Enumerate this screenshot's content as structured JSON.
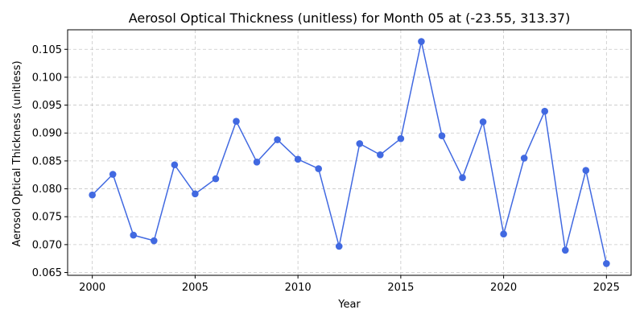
{
  "chart_data": {
    "type": "line",
    "title": "Aerosol Optical Thickness (unitless) for Month 05 at (-23.55, 313.37)",
    "xlabel": "Year",
    "ylabel": "Aerosol Optical Thickness (unitless)",
    "xlim": [
      1998.8,
      2026.2
    ],
    "ylim": [
      0.0645,
      0.1085
    ],
    "x_ticks": [
      2000,
      2005,
      2010,
      2015,
      2020,
      2025
    ],
    "x_tick_labels": [
      "2000",
      "2005",
      "2010",
      "2015",
      "2020",
      "2025"
    ],
    "y_ticks": [
      0.065,
      0.07,
      0.075,
      0.08,
      0.085,
      0.09,
      0.095,
      0.1,
      0.105
    ],
    "y_tick_labels": [
      "0.065",
      "0.070",
      "0.075",
      "0.080",
      "0.085",
      "0.090",
      "0.095",
      "0.100",
      "0.105"
    ],
    "grid": true,
    "series": [
      {
        "color": "#4169e1",
        "marker": "circle",
        "x": [
          2000,
          2001,
          2002,
          2003,
          2004,
          2005,
          2006,
          2007,
          2008,
          2009,
          2010,
          2011,
          2012,
          2013,
          2014,
          2015,
          2016,
          2017,
          2018,
          2019,
          2020,
          2021,
          2022,
          2023,
          2024,
          2025
        ],
        "values": [
          0.0789,
          0.0826,
          0.0717,
          0.0707,
          0.0843,
          0.0791,
          0.0818,
          0.0921,
          0.0848,
          0.0888,
          0.0853,
          0.0836,
          0.0697,
          0.0881,
          0.0861,
          0.089,
          0.1064,
          0.0895,
          0.082,
          0.092,
          0.0719,
          0.0855,
          0.0939,
          0.069,
          0.0833,
          0.0666
        ]
      }
    ]
  }
}
